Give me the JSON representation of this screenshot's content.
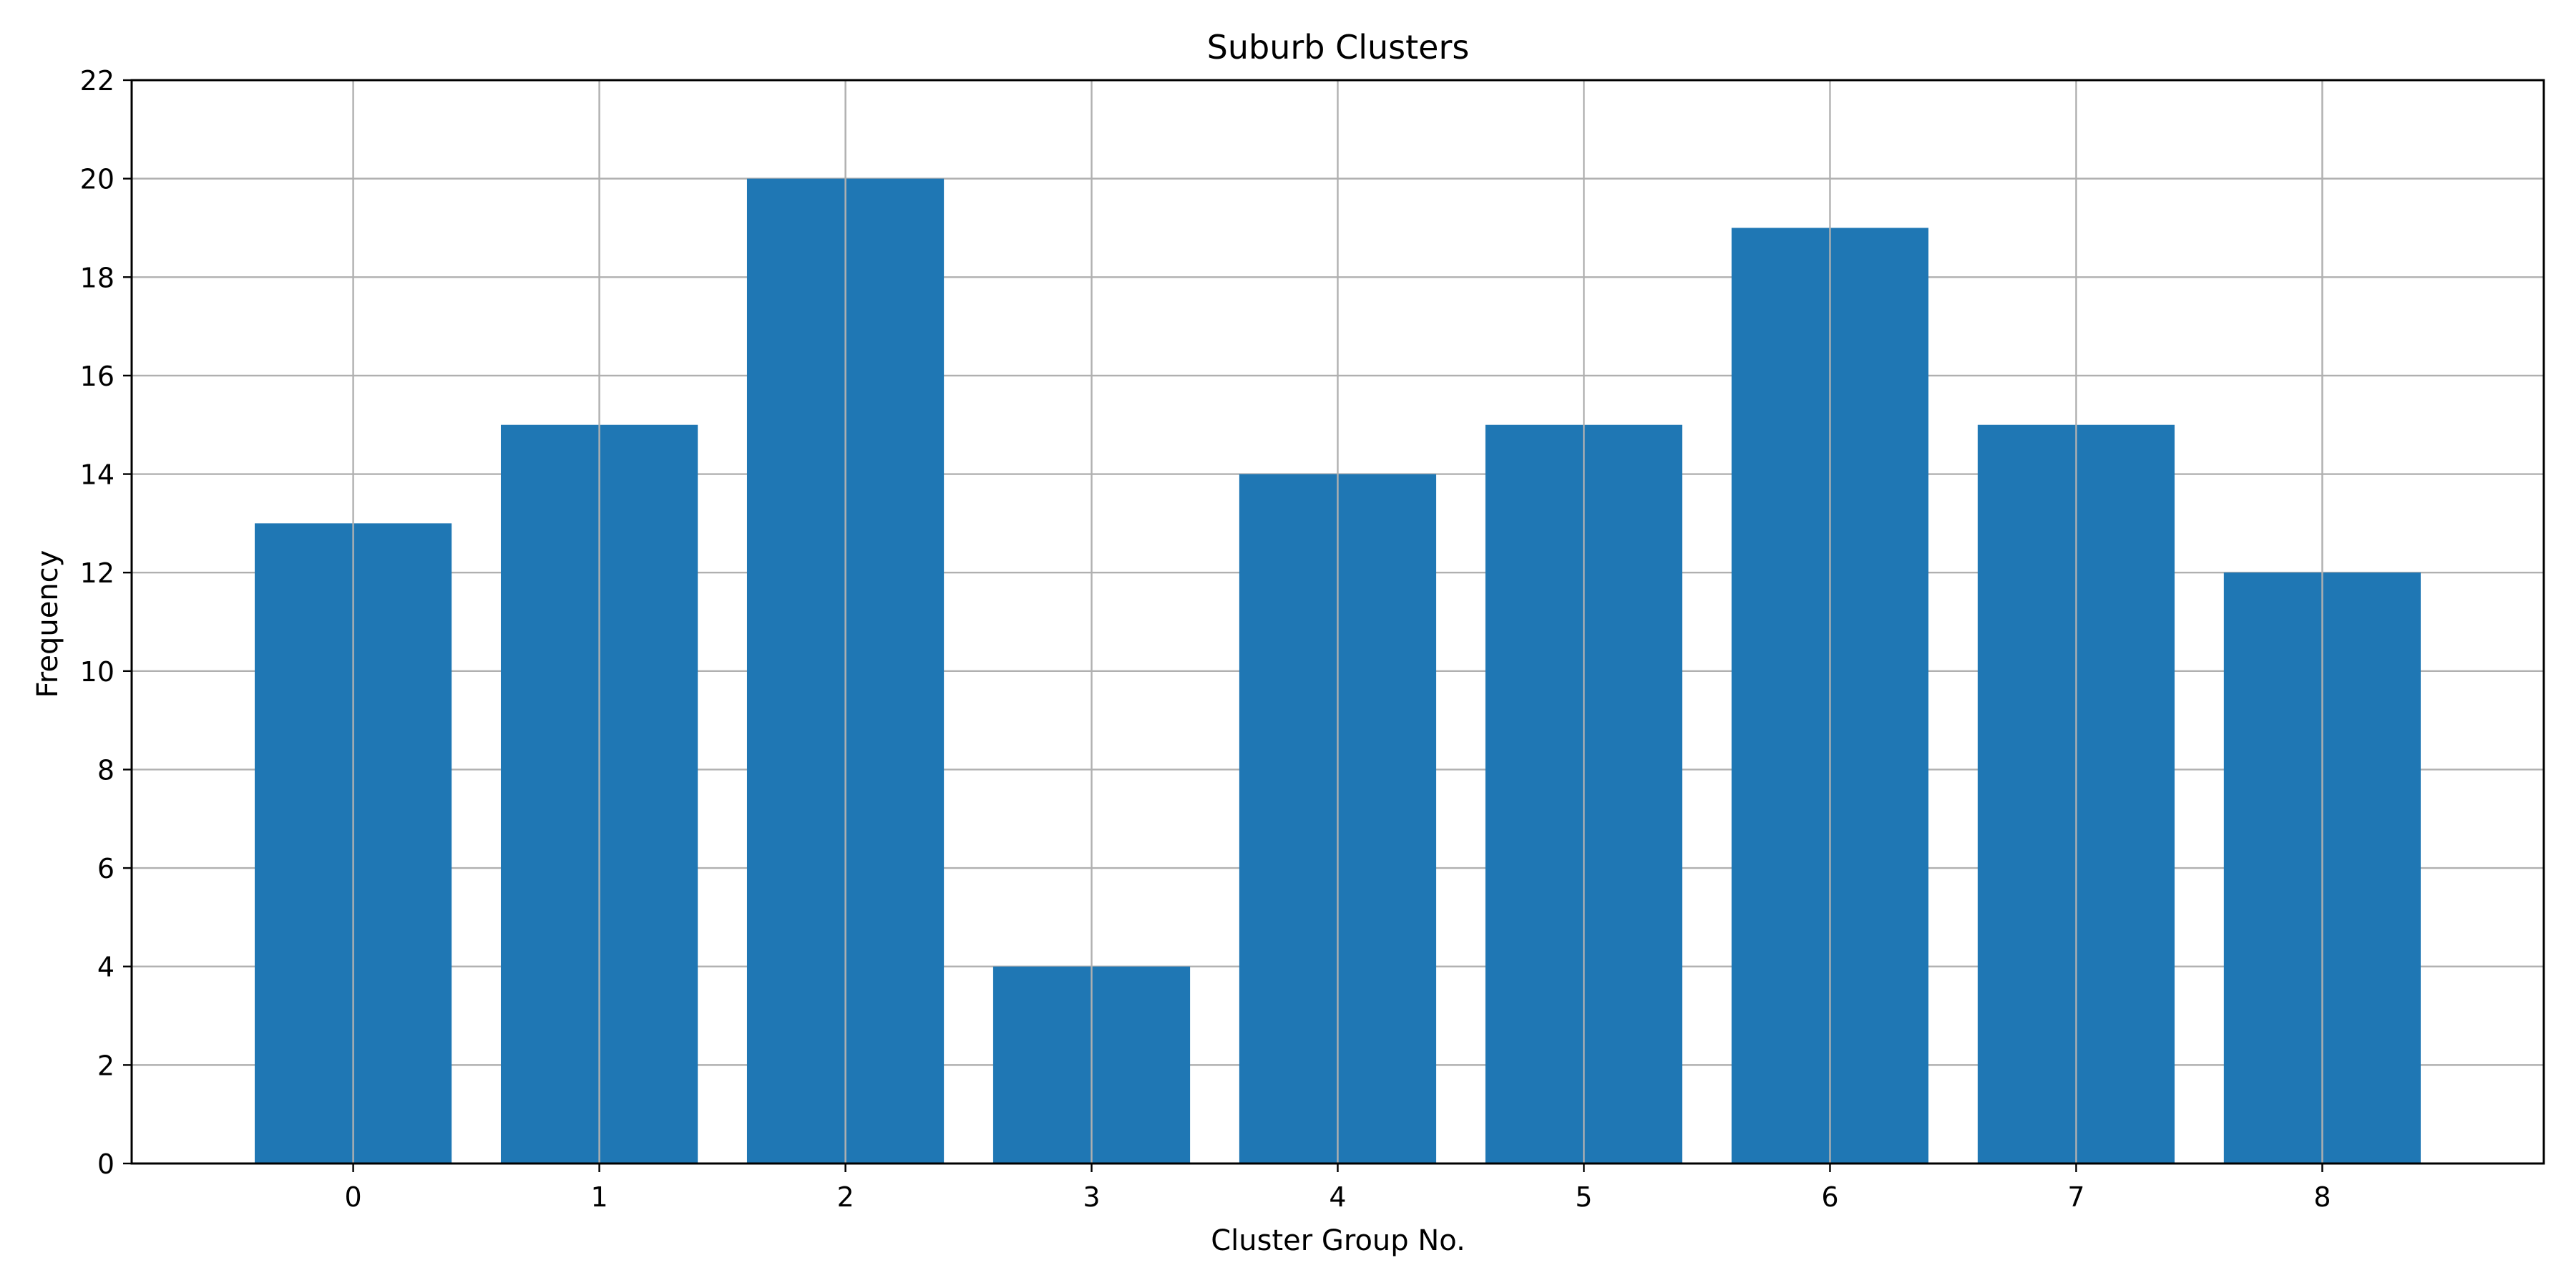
{
  "chart_data": {
    "type": "bar",
    "title": "Suburb Clusters",
    "xlabel": "Cluster Group No.",
    "ylabel": "Frequency",
    "categories": [
      "0",
      "1",
      "2",
      "3",
      "4",
      "5",
      "6",
      "7",
      "8"
    ],
    "values": [
      13,
      15,
      20,
      4,
      14,
      15,
      19,
      15,
      12
    ],
    "ylim": [
      0,
      22
    ],
    "yticks": [
      0,
      2,
      4,
      6,
      8,
      10,
      12,
      14,
      16,
      18,
      20,
      22
    ],
    "grid": true,
    "legend": "none",
    "colors": {
      "bar": "#1f77b4",
      "grid": "#b0b0b0",
      "axis": "#000000",
      "background": "#ffffff"
    }
  }
}
